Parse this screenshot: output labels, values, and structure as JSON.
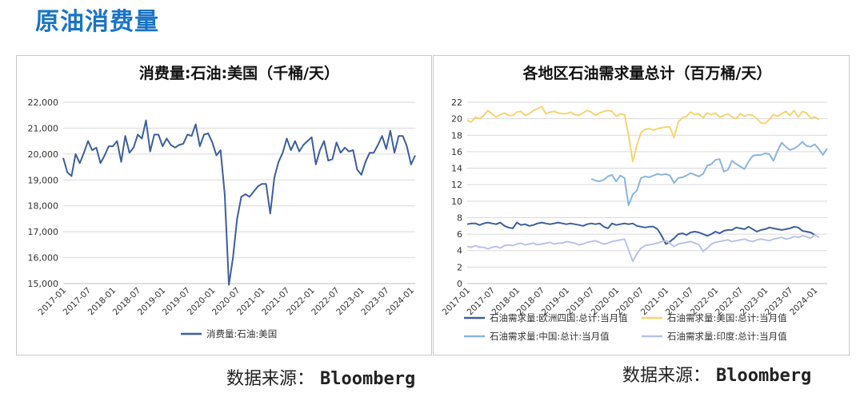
{
  "page_title": "原油消费量",
  "left_source": {
    "label": "数据来源：",
    "name": "Bloomberg"
  },
  "right_source": {
    "label": "数据来源：",
    "name": "Bloomberg"
  },
  "chart_data": [
    {
      "type": "line",
      "title": "消费量:石油:美国（千桶/天）",
      "ylim": [
        15000,
        22000
      ],
      "yticks": [
        15000,
        16000,
        17000,
        18000,
        19000,
        20000,
        21000,
        22000
      ],
      "ytick_labels": [
        "15,000",
        "16,000",
        "17,000",
        "18,000",
        "19,000",
        "20,000",
        "21,000",
        "22,000"
      ],
      "xtick_labels": [
        "2017-01",
        "2017-07",
        "2018-01",
        "2018-07",
        "2019-01",
        "2019-07",
        "2020-01",
        "2020-07",
        "2021-01",
        "2021-07",
        "2022-01",
        "2022-07",
        "2023-01",
        "2023-07",
        "2024-01"
      ],
      "legend_position": "bottom",
      "series": [
        {
          "name": "消费量:石油:美国",
          "color": "#3d5e9e",
          "values": [
            19850,
            19300,
            19150,
            20000,
            19650,
            20050,
            20500,
            20150,
            20250,
            19650,
            19950,
            20300,
            20300,
            20500,
            19700,
            20700,
            20050,
            20250,
            20750,
            20600,
            21300,
            20100,
            20750,
            20750,
            20300,
            20600,
            20350,
            20250,
            20350,
            20400,
            20750,
            20700,
            21150,
            20300,
            20750,
            20800,
            20450,
            19950,
            20150,
            18450,
            14950,
            16000,
            17500,
            18350,
            18450,
            18350,
            18550,
            18750,
            18850,
            18850,
            17700,
            19100,
            19700,
            20050,
            20600,
            20150,
            20500,
            20100,
            20350,
            20500,
            20650,
            19600,
            20150,
            20500,
            19750,
            19800,
            20450,
            20050,
            20250,
            20100,
            20150,
            19400,
            19200,
            19700,
            20050,
            20050,
            20350,
            20700,
            20200,
            20900,
            20050,
            20700,
            20700,
            20300,
            19600,
            19950
          ]
        }
      ]
    },
    {
      "type": "line",
      "title": "各地区石油需求量总计（百万桶/天）",
      "ylim": [
        0,
        22
      ],
      "yticks": [
        0,
        2,
        4,
        6,
        8,
        10,
        12,
        14,
        16,
        18,
        20,
        22
      ],
      "ytick_labels": [
        "0",
        "2",
        "4",
        "6",
        "8",
        "10",
        "12",
        "14",
        "16",
        "18",
        "20",
        "22"
      ],
      "xtick_labels": [
        "2017-01",
        "2017-07",
        "2018-01",
        "2018-07",
        "2019-01",
        "2019-07",
        "2020-01",
        "2020-07",
        "2021-01",
        "2021-07",
        "2022-01",
        "2022-07",
        "2023-01",
        "2023-07",
        "2024-01"
      ],
      "legend_position": "bottom",
      "series": [
        {
          "name": "石油需求量:欧洲四国:总计:当月值",
          "color": "#3d5e9e",
          "start": 0,
          "values": [
            7.2,
            7.3,
            7.3,
            7.1,
            7.3,
            7.4,
            7.3,
            7.2,
            7.4,
            7.0,
            6.8,
            6.7,
            7.4,
            7.1,
            7.2,
            7.0,
            7.1,
            7.3,
            7.4,
            7.3,
            7.2,
            7.3,
            7.4,
            7.3,
            7.2,
            7.3,
            7.2,
            7.1,
            7.0,
            7.2,
            7.3,
            7.2,
            7.3,
            6.9,
            6.7,
            7.3,
            7.1,
            7.2,
            7.3,
            7.2,
            7.3,
            7.0,
            6.9,
            6.8,
            6.9,
            6.9,
            6.6,
            5.8,
            4.8,
            5.1,
            5.5,
            6.0,
            6.1,
            5.9,
            6.2,
            6.3,
            6.2,
            6.0,
            5.8,
            6.0,
            6.3,
            6.1,
            6.4,
            6.5,
            6.5,
            6.8,
            6.7,
            6.6,
            6.9,
            6.6,
            6.3,
            6.5,
            6.6,
            6.8,
            6.7,
            6.6,
            6.5,
            6.6,
            6.7,
            6.9,
            6.8,
            6.4,
            6.3,
            6.2,
            5.9
          ]
        },
        {
          "name": "石油需求量:美国:总计:当月值",
          "color": "#f5d572",
          "start": 0,
          "values": [
            19.8,
            19.6,
            20.2,
            20.0,
            20.4,
            21.0,
            20.6,
            20.2,
            20.5,
            20.7,
            20.4,
            20.4,
            20.8,
            20.9,
            20.4,
            20.6,
            21.0,
            21.2,
            21.5,
            20.6,
            20.8,
            20.9,
            20.7,
            20.6,
            20.6,
            20.8,
            20.5,
            20.4,
            20.7,
            21.0,
            20.8,
            20.4,
            20.7,
            20.9,
            21.0,
            20.9,
            20.3,
            20.6,
            20.5,
            18.0,
            14.8,
            16.8,
            18.3,
            18.7,
            18.8,
            18.6,
            18.8,
            18.9,
            19.0,
            19.0,
            17.7,
            19.6,
            20.1,
            20.3,
            20.8,
            20.5,
            20.6,
            20.1,
            20.7,
            20.5,
            20.7,
            20.2,
            20.4,
            20.6,
            20.2,
            20.0,
            20.6,
            20.3,
            20.5,
            20.4,
            20.0,
            19.5,
            19.4,
            19.9,
            20.5,
            20.3,
            20.6,
            20.9,
            20.4,
            21.0,
            20.2,
            20.9,
            20.7,
            20.1,
            20.2,
            19.9
          ]
        },
        {
          "name": "石油需求量:中国:总计:当月值",
          "color": "#8cb4dc",
          "start": 30,
          "values": [
            12.7,
            12.5,
            12.4,
            12.6,
            13.0,
            13.2,
            12.4,
            13.1,
            12.8,
            9.5,
            10.8,
            11.3,
            12.8,
            13.0,
            12.9,
            13.1,
            13.3,
            13.2,
            13.3,
            13.1,
            12.2,
            12.8,
            12.9,
            13.1,
            13.4,
            13.2,
            13.0,
            13.3,
            14.3,
            14.5,
            15.0,
            15.1,
            13.6,
            13.8,
            14.9,
            14.5,
            14.2,
            13.9,
            14.8,
            15.5,
            15.6,
            15.6,
            15.8,
            15.7,
            14.9,
            16.1,
            17.1,
            16.6,
            16.2,
            16.4,
            16.7,
            17.2,
            16.7,
            16.6,
            16.9,
            16.3,
            15.6,
            16.4
          ]
        },
        {
          "name": "石油需求量:印度:总计:当月值",
          "color": "#b9c3e4",
          "start": 0,
          "values": [
            4.5,
            4.4,
            4.6,
            4.4,
            4.4,
            4.2,
            4.4,
            4.5,
            4.3,
            4.6,
            4.7,
            4.6,
            4.8,
            4.9,
            4.7,
            4.8,
            4.9,
            4.7,
            4.8,
            4.9,
            5.0,
            4.8,
            4.9,
            4.9,
            5.1,
            5.0,
            4.9,
            4.7,
            4.8,
            5.0,
            5.1,
            5.2,
            5.0,
            4.8,
            4.9,
            5.1,
            5.2,
            5.3,
            5.4,
            4.1,
            2.7,
            3.6,
            4.3,
            4.6,
            4.7,
            4.8,
            4.9,
            5.1,
            5.2,
            4.9,
            4.5,
            4.8,
            4.9,
            5.0,
            5.1,
            4.9,
            4.7,
            3.9,
            4.3,
            4.8,
            5.0,
            5.1,
            5.2,
            5.3,
            5.1,
            5.2,
            5.3,
            5.4,
            5.2,
            5.1,
            5.3,
            5.4,
            5.3,
            5.2,
            5.4,
            5.5,
            5.6,
            5.4,
            5.5,
            5.7,
            5.6,
            5.8,
            5.7,
            5.5,
            5.9,
            5.6
          ]
        }
      ]
    }
  ]
}
